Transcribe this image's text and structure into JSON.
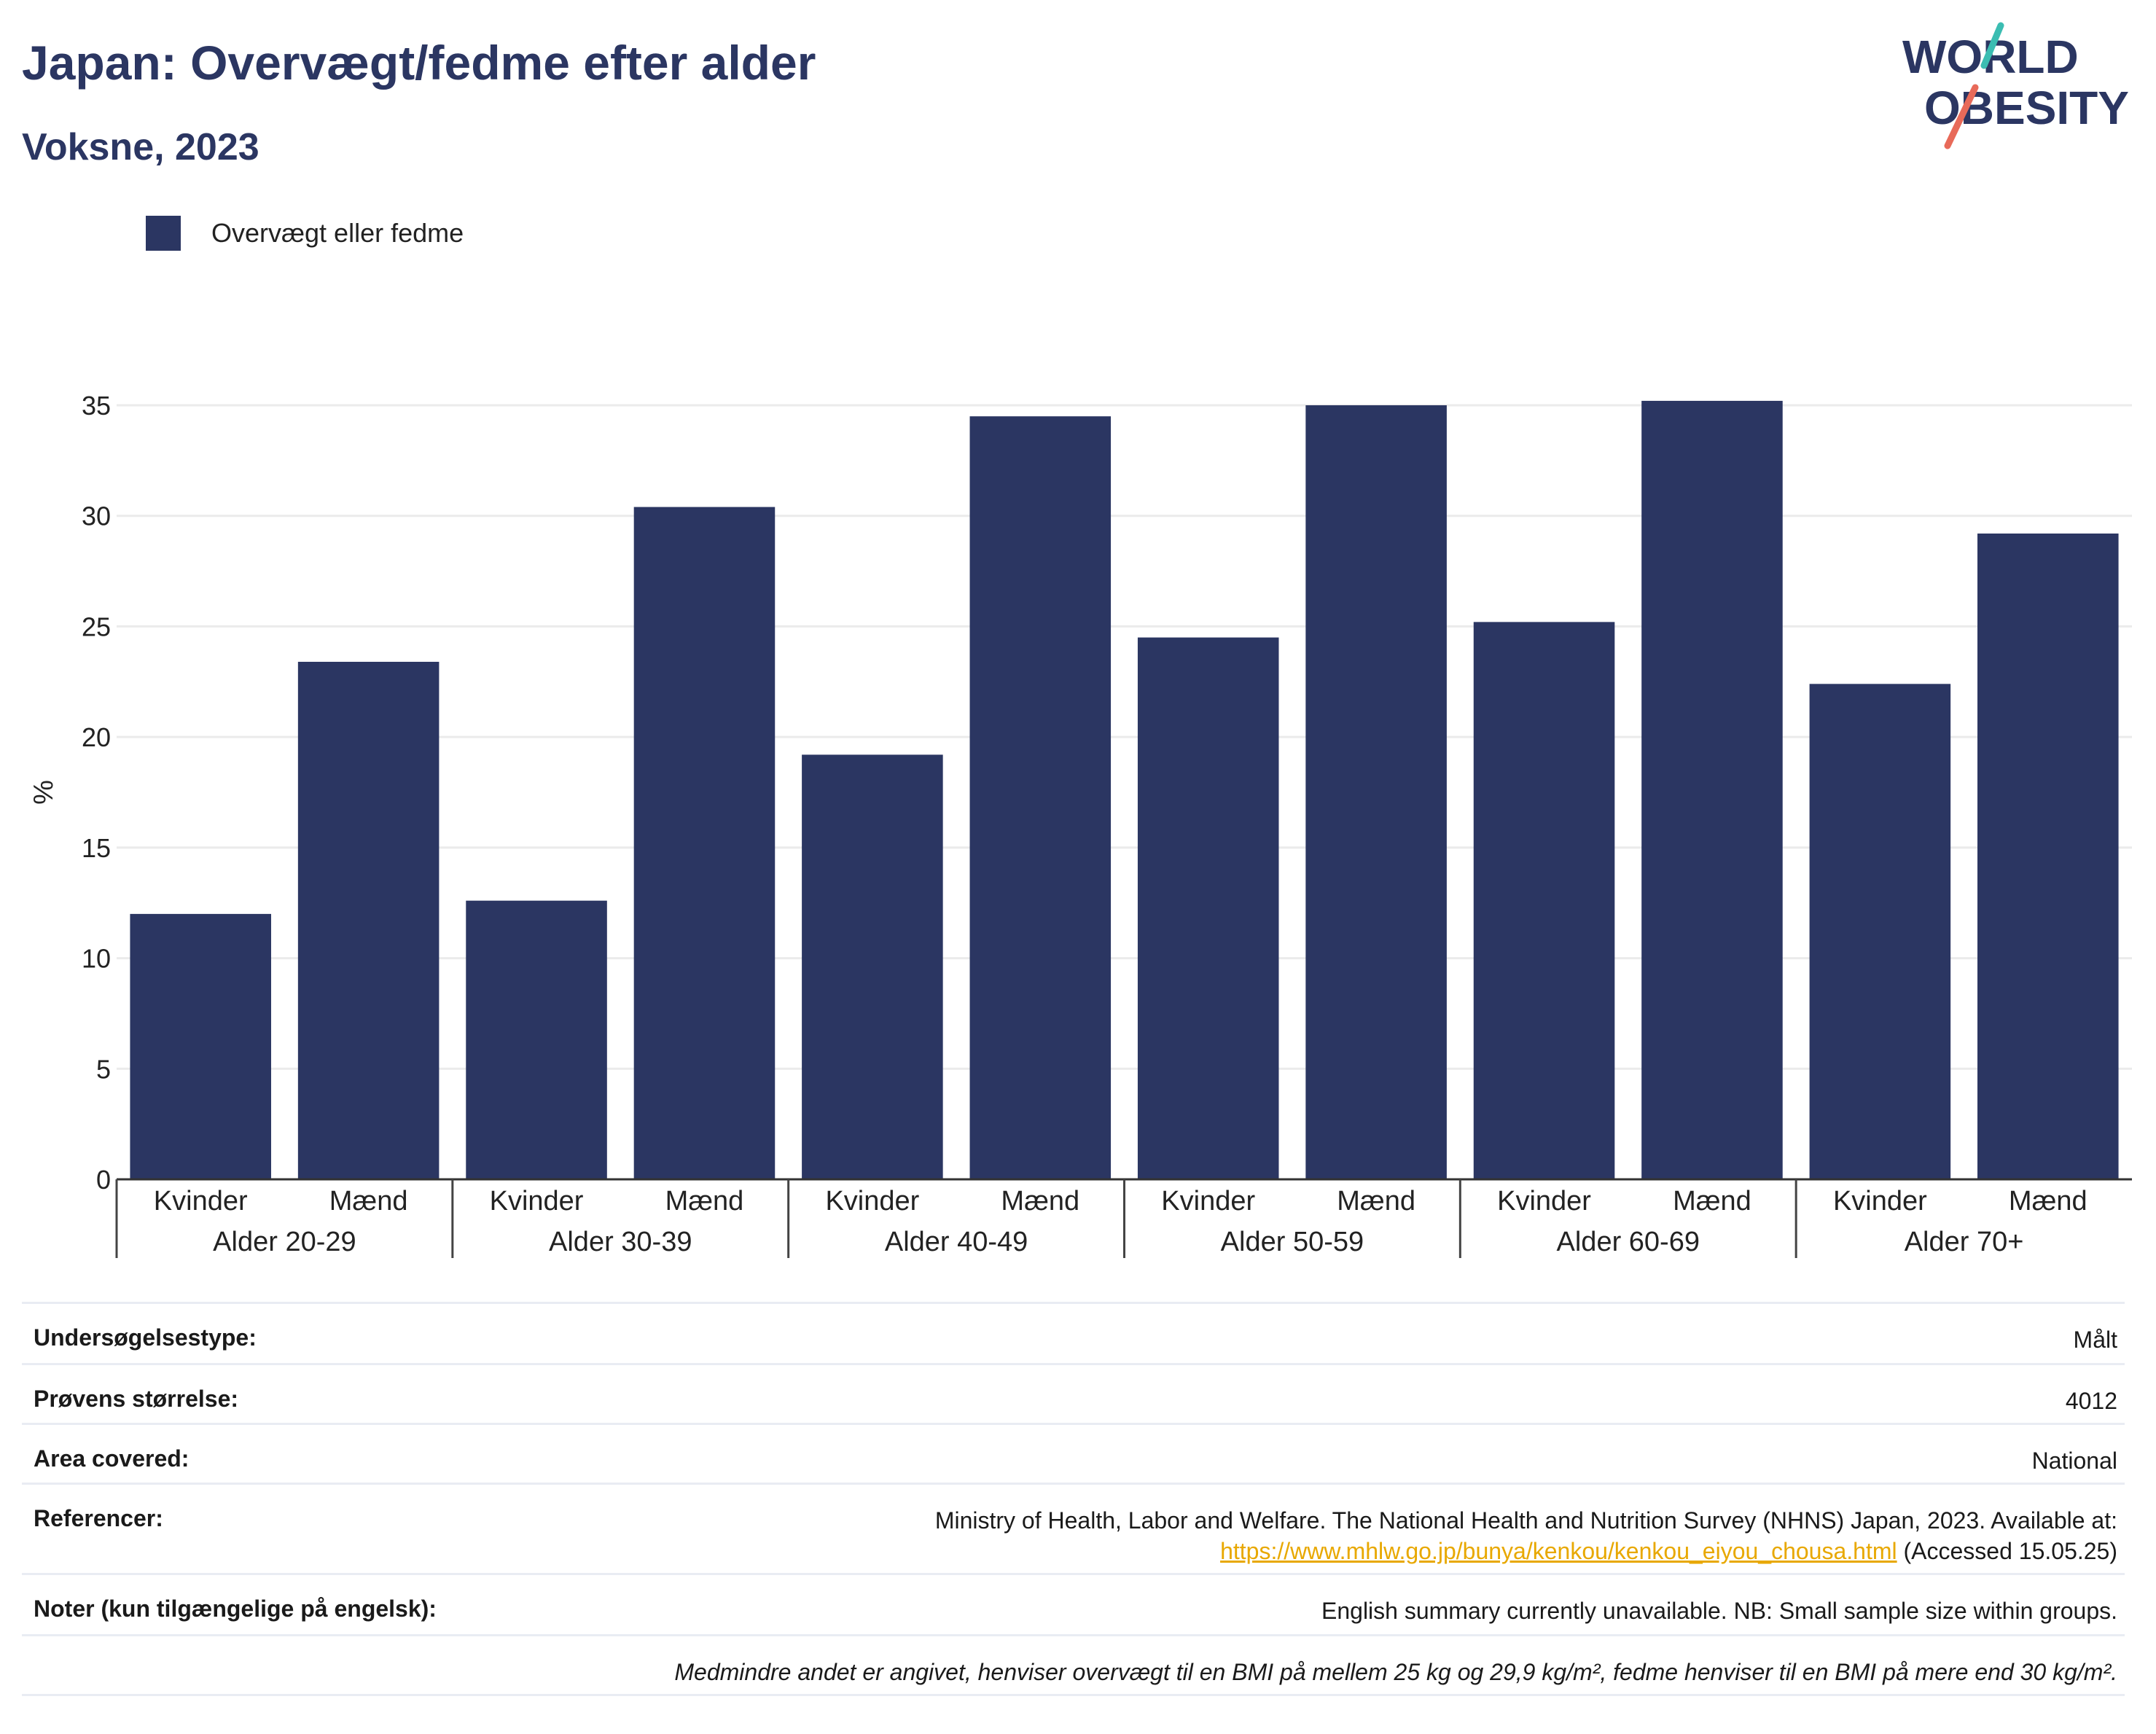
{
  "header": {
    "title": "Japan: Overvægt/fedme efter alder",
    "subtitle": "Voksne, 2023"
  },
  "logo": {
    "line1": "WORLD",
    "line2": "OBESITY"
  },
  "legend": {
    "label": "Overvægt eller fedme",
    "color": "#2b3662"
  },
  "chart_data": {
    "type": "bar",
    "ylabel": "%",
    "ylim": [
      0,
      35
    ],
    "yticks": [
      0,
      5,
      10,
      15,
      20,
      25,
      30,
      35
    ],
    "grid": true,
    "legend_placement": "top-left",
    "groups": [
      "Alder 20-29",
      "Alder 30-39",
      "Alder 40-49",
      "Alder 50-59",
      "Alder 60-69",
      "Alder 70+"
    ],
    "sub_categories": [
      "Kvinder",
      "Mænd"
    ],
    "series": [
      {
        "name": "Overvægt eller fedme",
        "color": "#2b3662",
        "values": [
          12.0,
          23.4,
          12.6,
          30.4,
          19.2,
          34.5,
          24.5,
          35.0,
          25.2,
          35.2,
          22.4,
          29.2
        ]
      }
    ]
  },
  "meta": {
    "survey_type": {
      "label": "Undersøgelsestype:",
      "value": "Målt"
    },
    "sample_size": {
      "label": "Prøvens størrelse:",
      "value": "4012"
    },
    "area": {
      "label": "Area covered:",
      "value": "National"
    },
    "references": {
      "label": "Referencer:",
      "text": "Ministry of Health, Labor and Welfare. The National Health and Nutrition Survey (NHNS) Japan, 2023. Available at:",
      "link": "https://www.mhlw.go.jp/bunya/kenkou/kenkou_eiyou_chousa.html",
      "accessed": " (Accessed 15.05.25)"
    },
    "notes": {
      "label": "Noter (kun tilgængelige på engelsk):",
      "value": "English summary currently unavailable. NB: Small sample size within groups."
    },
    "footnote": "Medmindre andet er angivet, henviser overvægt til en BMI på mellem 25 kg og 29,9 kg/m², fedme henviser til en BMI på mere end 30 kg/m²."
  }
}
